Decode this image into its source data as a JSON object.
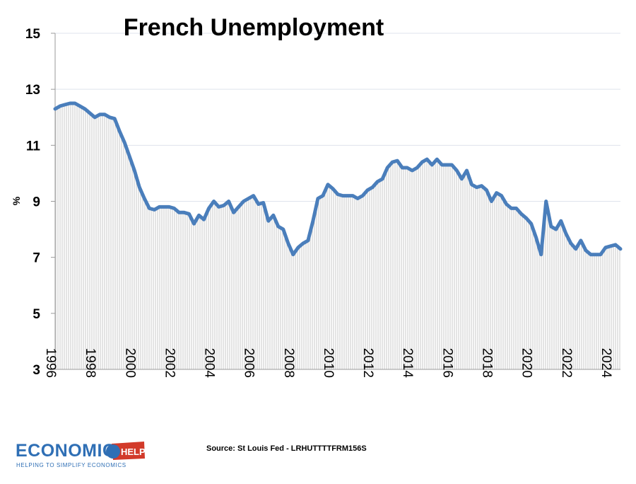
{
  "chart_data": {
    "type": "area",
    "title": "French Unemployment",
    "ylabel": "%",
    "xlabel": "",
    "ylim": [
      3,
      15
    ],
    "xlim": [
      1996,
      2024.5
    ],
    "yticks": [
      "15",
      "13",
      "11",
      "9",
      "7",
      "5",
      "3"
    ],
    "xticks": [
      "1996",
      "1998",
      "2000",
      "2002",
      "2004",
      "2006",
      "2008",
      "2010",
      "2012",
      "2014",
      "2016",
      "2018",
      "2020",
      "2022",
      "2024"
    ],
    "grid": "horizontal",
    "line_color": "#4a7ebb",
    "fill_color": "#c9c9c9",
    "series": [
      {
        "x": [
          1996.0,
          1996.25,
          1996.5,
          1996.75,
          1997.0,
          1997.25,
          1997.5,
          1997.75,
          1998.0,
          1998.25,
          1998.5,
          1998.75,
          1999.0,
          1999.25,
          1999.5,
          1999.75,
          2000.0,
          2000.25,
          2000.5,
          2000.75,
          2001.0,
          2001.25,
          2001.5,
          2001.75,
          2002.0,
          2002.25,
          2002.5,
          2002.75,
          2003.0,
          2003.25,
          2003.5,
          2003.75,
          2004.0,
          2004.25,
          2004.5,
          2004.75,
          2005.0,
          2005.25,
          2005.5,
          2005.75,
          2006.0,
          2006.25,
          2006.5,
          2006.75,
          2007.0,
          2007.25,
          2007.5,
          2007.75,
          2008.0,
          2008.25,
          2008.5,
          2008.75,
          2009.0,
          2009.25,
          2009.5,
          2009.75,
          2010.0,
          2010.25,
          2010.5,
          2010.75,
          2011.0,
          2011.25,
          2011.5,
          2011.75,
          2012.0,
          2012.25,
          2012.5,
          2012.75,
          2013.0,
          2013.25,
          2013.5,
          2013.75,
          2014.0,
          2014.25,
          2014.5,
          2014.75,
          2015.0,
          2015.25,
          2015.5,
          2015.75,
          2016.0,
          2016.25,
          2016.5,
          2016.75,
          2017.0,
          2017.25,
          2017.5,
          2017.75,
          2018.0,
          2018.25,
          2018.5,
          2018.75,
          2019.0,
          2019.25,
          2019.5,
          2019.75,
          2020.0,
          2020.25,
          2020.5,
          2020.75,
          2021.0,
          2021.25,
          2021.5,
          2021.75,
          2022.0,
          2022.25,
          2022.5,
          2022.75,
          2023.0,
          2023.25,
          2023.5,
          2023.75,
          2024.0,
          2024.25,
          2024.5
        ],
        "values": [
          12.3,
          12.4,
          12.45,
          12.5,
          12.5,
          12.4,
          12.3,
          12.15,
          12.0,
          12.1,
          12.1,
          12.0,
          11.95,
          11.5,
          11.1,
          10.6,
          10.1,
          9.5,
          9.1,
          8.75,
          8.7,
          8.8,
          8.8,
          8.8,
          8.75,
          8.6,
          8.6,
          8.55,
          8.2,
          8.5,
          8.35,
          8.75,
          9.0,
          8.8,
          8.85,
          9.0,
          8.6,
          8.8,
          9.0,
          9.1,
          9.2,
          8.9,
          8.95,
          8.3,
          8.5,
          8.1,
          8.0,
          7.5,
          7.1,
          7.35,
          7.5,
          7.6,
          8.3,
          9.1,
          9.2,
          9.6,
          9.45,
          9.25,
          9.2,
          9.2,
          9.2,
          9.1,
          9.2,
          9.4,
          9.5,
          9.7,
          9.8,
          10.2,
          10.4,
          10.45,
          10.2,
          10.2,
          10.1,
          10.2,
          10.4,
          10.5,
          10.3,
          10.5,
          10.3,
          10.3,
          10.3,
          10.1,
          9.8,
          10.1,
          9.6,
          9.5,
          9.55,
          9.4,
          9.0,
          9.3,
          9.2,
          8.9,
          8.75,
          8.75,
          8.55,
          8.4,
          8.2,
          7.7,
          7.1,
          9.0,
          8.1,
          8.0,
          8.3,
          7.85,
          7.5,
          7.3,
          7.6,
          7.25,
          7.1,
          7.1,
          7.1,
          7.35,
          7.4,
          7.45,
          7.3
        ]
      }
    ]
  },
  "footer": {
    "source": "Source: St Louis Fed - LRHUTTTTFRM156S"
  },
  "logo": {
    "main": "ECONOMICS",
    "badge": "HELP",
    "tagline": "HELPING TO SIMPLIFY ECONOMICS"
  }
}
